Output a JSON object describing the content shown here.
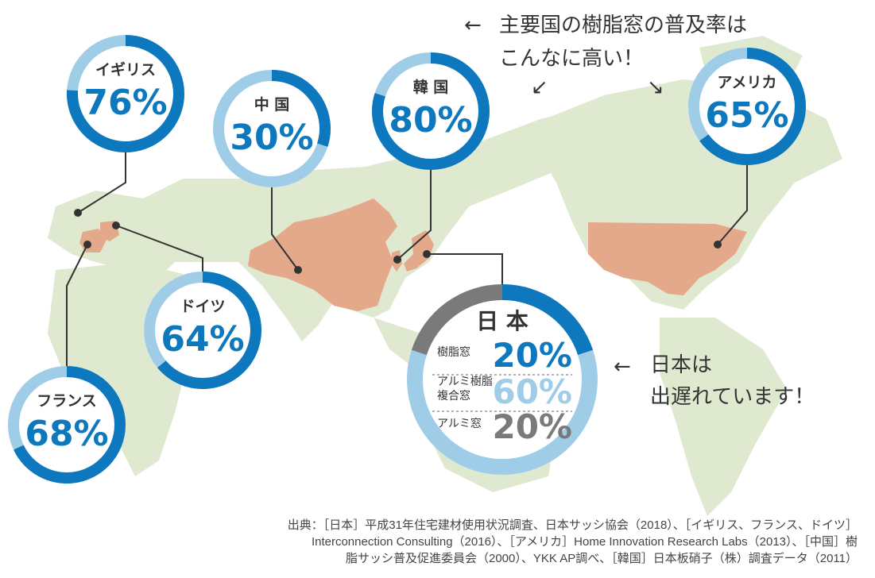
{
  "chart_data": {
    "type": "pie",
    "series": [
      {
        "name": "イギリス",
        "value": 76
      },
      {
        "name": "中 国",
        "value": 30
      },
      {
        "name": "韓 国",
        "value": 80
      },
      {
        "name": "アメリカ",
        "value": 65
      },
      {
        "name": "ドイツ",
        "value": 64
      },
      {
        "name": "フランス",
        "value": 68
      }
    ],
    "japan": {
      "name": "日 本",
      "slices": [
        {
          "label": "樹脂窓",
          "value": 20
        },
        {
          "label": "アルミ樹脂\n複合窓",
          "value": 60
        },
        {
          "label": "アルミ窓",
          "value": 20
        }
      ]
    },
    "percent_suffix": "%"
  },
  "annotations": {
    "top_line1": "主要国の樹脂窓の普及率は",
    "top_line2": "こんなに高い！",
    "japan_line1": "日本は",
    "japan_line2": "出遅れています！"
  },
  "source": {
    "line1": "出典：［日本］平成31年住宅建材使用状況調査、日本サッシ協会（2018）、［イギリス、フランス、ドイツ］",
    "line2": "Interconnection Consulting（2016）、［アメリカ］Home Innovation Research Labs（2013）、［中国］樹",
    "line3": "脂サッシ普及促進委員会（2000）、YKK AP調べ、［韓国］日本板硝子（株）調査データ（2011）"
  },
  "colors": {
    "ring_fill": "#0d78bd",
    "ring_rest": "#9fcde8",
    "japan_gray": "#7a7a7a",
    "map": "#dfe9cf",
    "highlight": "#e4a98a",
    "connector": "#333333"
  }
}
